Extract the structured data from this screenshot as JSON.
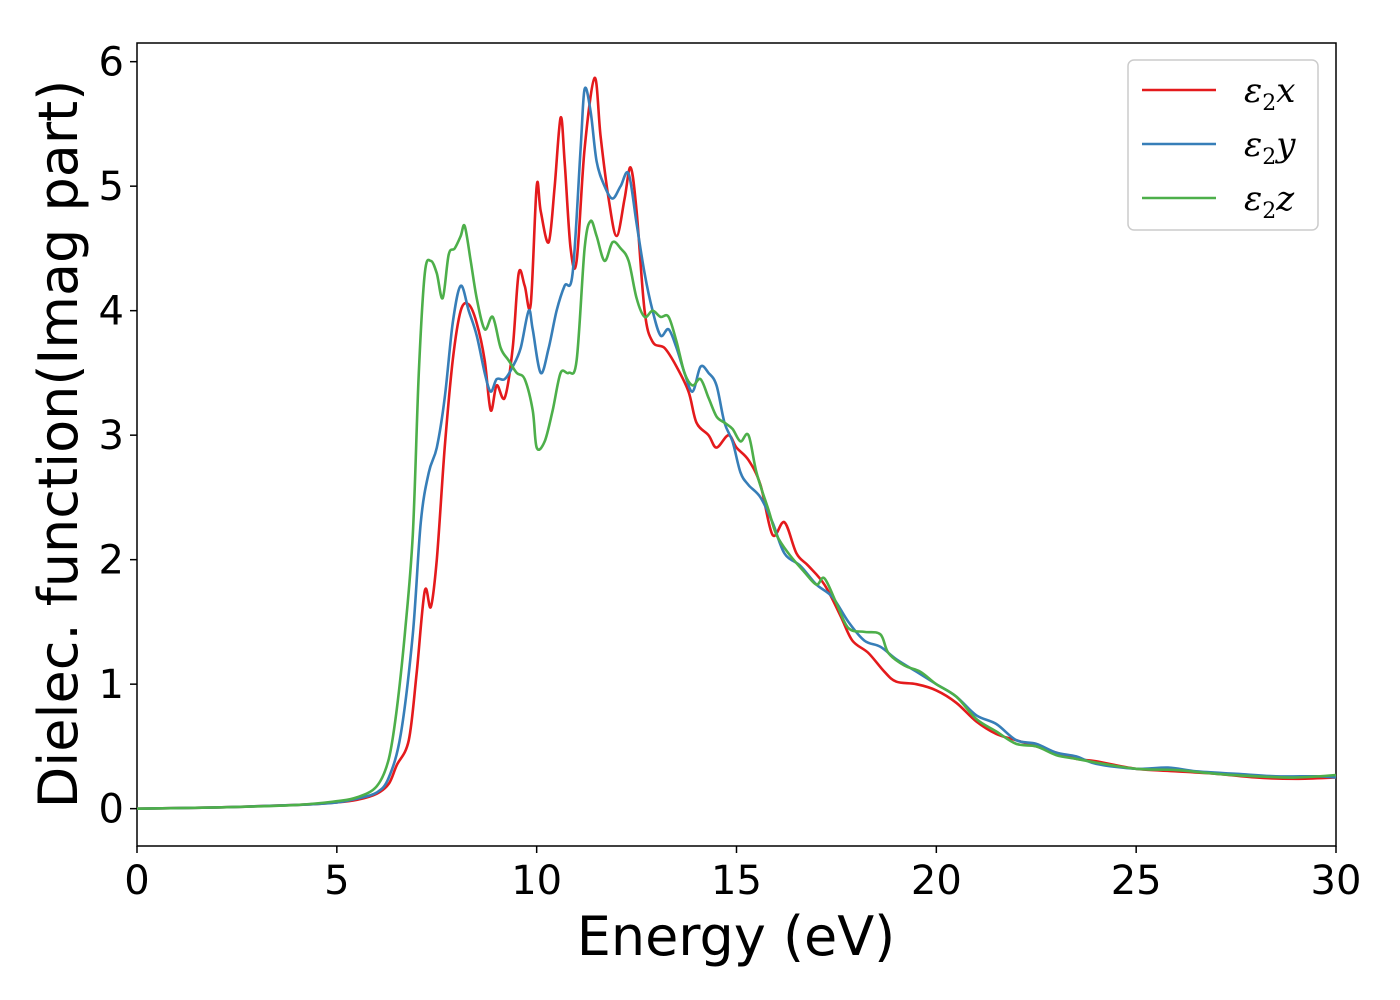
{
  "chart_data": {
    "type": "line",
    "xlabel": "Energy (eV)",
    "ylabel": "Dielec. function(Imag part)",
    "xlim": [
      0,
      30
    ],
    "ylim": [
      -0.3,
      6.15
    ],
    "xticks": [
      0,
      5,
      10,
      15,
      20,
      25,
      30
    ],
    "yticks": [
      0,
      1,
      2,
      3,
      4,
      5,
      6
    ],
    "grid": false,
    "legend_position": "top-right",
    "series": [
      {
        "name": "ε2x",
        "legend_symbol": "ε",
        "legend_sub": "2",
        "legend_axis": "x",
        "color": "#e41a1c",
        "points": [
          [
            0,
            0
          ],
          [
            2,
            0.01
          ],
          [
            4,
            0.03
          ],
          [
            5,
            0.05
          ],
          [
            5.5,
            0.07
          ],
          [
            6,
            0.12
          ],
          [
            6.3,
            0.2
          ],
          [
            6.5,
            0.35
          ],
          [
            6.8,
            0.55
          ],
          [
            7.0,
            1.1
          ],
          [
            7.2,
            1.75
          ],
          [
            7.35,
            1.62
          ],
          [
            7.5,
            2.0
          ],
          [
            7.7,
            2.9
          ],
          [
            7.9,
            3.6
          ],
          [
            8.1,
            4.0
          ],
          [
            8.3,
            4.05
          ],
          [
            8.5,
            3.9
          ],
          [
            8.7,
            3.6
          ],
          [
            8.85,
            3.2
          ],
          [
            9.0,
            3.4
          ],
          [
            9.2,
            3.3
          ],
          [
            9.4,
            3.7
          ],
          [
            9.55,
            4.3
          ],
          [
            9.7,
            4.2
          ],
          [
            9.85,
            4.05
          ],
          [
            10.0,
            5.0
          ],
          [
            10.1,
            4.8
          ],
          [
            10.3,
            4.55
          ],
          [
            10.45,
            5.0
          ],
          [
            10.6,
            5.55
          ],
          [
            10.7,
            5.2
          ],
          [
            10.85,
            4.5
          ],
          [
            11.0,
            4.4
          ],
          [
            11.2,
            5.3
          ],
          [
            11.45,
            5.87
          ],
          [
            11.6,
            5.4
          ],
          [
            11.8,
            4.9
          ],
          [
            12.0,
            4.6
          ],
          [
            12.2,
            4.9
          ],
          [
            12.35,
            5.15
          ],
          [
            12.5,
            4.8
          ],
          [
            12.7,
            4.0
          ],
          [
            12.9,
            3.75
          ],
          [
            13.2,
            3.7
          ],
          [
            13.5,
            3.55
          ],
          [
            13.8,
            3.35
          ],
          [
            14.0,
            3.1
          ],
          [
            14.3,
            3.0
          ],
          [
            14.5,
            2.9
          ],
          [
            14.8,
            3.0
          ],
          [
            15.0,
            2.9
          ],
          [
            15.3,
            2.8
          ],
          [
            15.6,
            2.6
          ],
          [
            15.9,
            2.2
          ],
          [
            16.2,
            2.3
          ],
          [
            16.5,
            2.05
          ],
          [
            16.8,
            1.95
          ],
          [
            17.2,
            1.8
          ],
          [
            17.6,
            1.55
          ],
          [
            17.9,
            1.35
          ],
          [
            18.3,
            1.25
          ],
          [
            18.7,
            1.1
          ],
          [
            19.0,
            1.02
          ],
          [
            19.5,
            1.0
          ],
          [
            20.0,
            0.95
          ],
          [
            20.5,
            0.85
          ],
          [
            21.0,
            0.7
          ],
          [
            21.5,
            0.6
          ],
          [
            22.0,
            0.55
          ],
          [
            22.5,
            0.5
          ],
          [
            23.0,
            0.45
          ],
          [
            23.5,
            0.4
          ],
          [
            24.0,
            0.38
          ],
          [
            25.0,
            0.32
          ],
          [
            26.0,
            0.3
          ],
          [
            27.0,
            0.28
          ],
          [
            28.0,
            0.25
          ],
          [
            29.0,
            0.24
          ],
          [
            30,
            0.25
          ]
        ]
      },
      {
        "name": "ε2y",
        "legend_symbol": "ε",
        "legend_sub": "2",
        "legend_axis": "y",
        "color": "#377eb8",
        "points": [
          [
            0,
            0
          ],
          [
            2,
            0.01
          ],
          [
            4,
            0.03
          ],
          [
            5,
            0.05
          ],
          [
            5.5,
            0.08
          ],
          [
            6,
            0.13
          ],
          [
            6.3,
            0.25
          ],
          [
            6.6,
            0.6
          ],
          [
            6.9,
            1.4
          ],
          [
            7.1,
            2.3
          ],
          [
            7.3,
            2.7
          ],
          [
            7.5,
            2.9
          ],
          [
            7.7,
            3.3
          ],
          [
            7.9,
            3.9
          ],
          [
            8.1,
            4.2
          ],
          [
            8.3,
            4.0
          ],
          [
            8.5,
            3.8
          ],
          [
            8.7,
            3.5
          ],
          [
            8.85,
            3.35
          ],
          [
            9.0,
            3.45
          ],
          [
            9.2,
            3.45
          ],
          [
            9.4,
            3.55
          ],
          [
            9.6,
            3.7
          ],
          [
            9.8,
            4.0
          ],
          [
            9.9,
            3.85
          ],
          [
            10.1,
            3.5
          ],
          [
            10.3,
            3.7
          ],
          [
            10.5,
            4.0
          ],
          [
            10.7,
            4.2
          ],
          [
            10.9,
            4.3
          ],
          [
            11.1,
            5.3
          ],
          [
            11.2,
            5.78
          ],
          [
            11.35,
            5.6
          ],
          [
            11.5,
            5.2
          ],
          [
            11.7,
            5.0
          ],
          [
            11.9,
            4.9
          ],
          [
            12.1,
            5.0
          ],
          [
            12.3,
            5.1
          ],
          [
            12.5,
            4.7
          ],
          [
            12.7,
            4.3
          ],
          [
            12.9,
            4.0
          ],
          [
            13.1,
            3.8
          ],
          [
            13.3,
            3.85
          ],
          [
            13.5,
            3.7
          ],
          [
            13.7,
            3.5
          ],
          [
            13.9,
            3.35
          ],
          [
            14.1,
            3.55
          ],
          [
            14.3,
            3.5
          ],
          [
            14.5,
            3.4
          ],
          [
            14.7,
            3.1
          ],
          [
            14.9,
            2.95
          ],
          [
            15.1,
            2.7
          ],
          [
            15.3,
            2.6
          ],
          [
            15.6,
            2.5
          ],
          [
            15.9,
            2.3
          ],
          [
            16.2,
            2.05
          ],
          [
            16.6,
            1.95
          ],
          [
            17.0,
            1.8
          ],
          [
            17.4,
            1.7
          ],
          [
            17.8,
            1.5
          ],
          [
            18.2,
            1.35
          ],
          [
            18.6,
            1.3
          ],
          [
            19.0,
            1.2
          ],
          [
            19.5,
            1.1
          ],
          [
            20.0,
            1.0
          ],
          [
            20.5,
            0.9
          ],
          [
            21.0,
            0.75
          ],
          [
            21.5,
            0.68
          ],
          [
            22.0,
            0.55
          ],
          [
            22.5,
            0.52
          ],
          [
            23.0,
            0.45
          ],
          [
            23.5,
            0.42
          ],
          [
            24.0,
            0.36
          ],
          [
            25.0,
            0.32
          ],
          [
            25.8,
            0.33
          ],
          [
            26.5,
            0.3
          ],
          [
            27.5,
            0.28
          ],
          [
            28.5,
            0.26
          ],
          [
            29.5,
            0.26
          ],
          [
            30,
            0.25
          ]
        ]
      },
      {
        "name": "ε2z",
        "legend_symbol": "ε",
        "legend_sub": "2",
        "legend_axis": "z",
        "color": "#4daf4a",
        "points": [
          [
            0,
            0
          ],
          [
            2,
            0.01
          ],
          [
            4,
            0.03
          ],
          [
            5,
            0.06
          ],
          [
            5.5,
            0.09
          ],
          [
            6,
            0.18
          ],
          [
            6.3,
            0.4
          ],
          [
            6.5,
            0.8
          ],
          [
            6.7,
            1.4
          ],
          [
            6.9,
            2.2
          ],
          [
            7.05,
            3.5
          ],
          [
            7.2,
            4.3
          ],
          [
            7.35,
            4.4
          ],
          [
            7.5,
            4.3
          ],
          [
            7.65,
            4.1
          ],
          [
            7.8,
            4.45
          ],
          [
            7.95,
            4.5
          ],
          [
            8.1,
            4.6
          ],
          [
            8.2,
            4.68
          ],
          [
            8.35,
            4.4
          ],
          [
            8.5,
            4.1
          ],
          [
            8.7,
            3.85
          ],
          [
            8.9,
            3.95
          ],
          [
            9.1,
            3.7
          ],
          [
            9.3,
            3.6
          ],
          [
            9.5,
            3.5
          ],
          [
            9.7,
            3.45
          ],
          [
            9.9,
            3.2
          ],
          [
            10.0,
            2.9
          ],
          [
            10.2,
            2.95
          ],
          [
            10.4,
            3.2
          ],
          [
            10.6,
            3.5
          ],
          [
            10.8,
            3.5
          ],
          [
            11.0,
            3.6
          ],
          [
            11.2,
            4.5
          ],
          [
            11.35,
            4.72
          ],
          [
            11.5,
            4.6
          ],
          [
            11.7,
            4.4
          ],
          [
            11.9,
            4.55
          ],
          [
            12.1,
            4.5
          ],
          [
            12.3,
            4.4
          ],
          [
            12.5,
            4.1
          ],
          [
            12.7,
            3.95
          ],
          [
            12.9,
            4.0
          ],
          [
            13.1,
            3.95
          ],
          [
            13.3,
            3.95
          ],
          [
            13.5,
            3.75
          ],
          [
            13.7,
            3.5
          ],
          [
            13.9,
            3.4
          ],
          [
            14.1,
            3.45
          ],
          [
            14.3,
            3.3
          ],
          [
            14.5,
            3.15
          ],
          [
            14.7,
            3.1
          ],
          [
            14.9,
            3.05
          ],
          [
            15.1,
            2.95
          ],
          [
            15.3,
            3.0
          ],
          [
            15.5,
            2.7
          ],
          [
            15.8,
            2.4
          ],
          [
            16.0,
            2.2
          ],
          [
            16.3,
            2.05
          ],
          [
            16.7,
            1.9
          ],
          [
            17.0,
            1.8
          ],
          [
            17.2,
            1.85
          ],
          [
            17.5,
            1.65
          ],
          [
            17.8,
            1.45
          ],
          [
            18.2,
            1.42
          ],
          [
            18.6,
            1.4
          ],
          [
            18.8,
            1.25
          ],
          [
            19.2,
            1.15
          ],
          [
            19.6,
            1.1
          ],
          [
            20.0,
            1.0
          ],
          [
            20.5,
            0.9
          ],
          [
            21.0,
            0.72
          ],
          [
            21.5,
            0.62
          ],
          [
            22.0,
            0.52
          ],
          [
            22.5,
            0.5
          ],
          [
            23.0,
            0.43
          ],
          [
            23.5,
            0.4
          ],
          [
            24.0,
            0.37
          ],
          [
            25.0,
            0.32
          ],
          [
            26.0,
            0.31
          ],
          [
            27.0,
            0.28
          ],
          [
            28.0,
            0.26
          ],
          [
            29.0,
            0.25
          ],
          [
            30,
            0.27
          ]
        ]
      }
    ]
  }
}
